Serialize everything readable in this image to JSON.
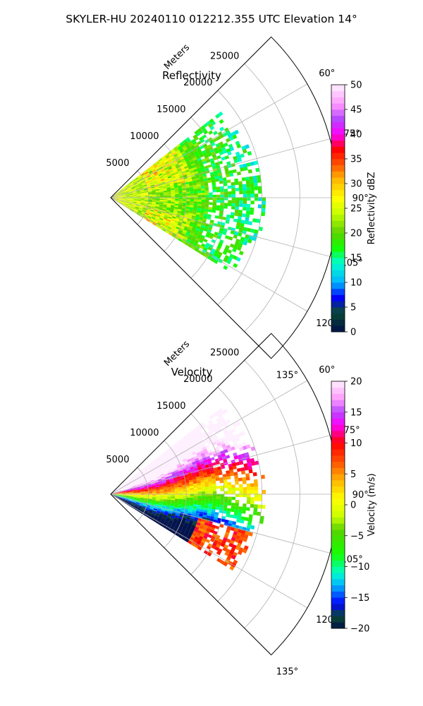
{
  "suptitle": "SKYLER-HU  20240110  012212.355 UTC Elevation 14°",
  "chart_data": [
    {
      "type": "heatmap",
      "subtype": "polar-sector (PPI)",
      "title": "Reflectivity",
      "radial_axis_label": "Meters",
      "radial_ticks": [
        5000,
        10000,
        15000,
        20000,
        25000
      ],
      "radial_tick_labels": [
        "5000",
        "10000",
        "15000",
        "20000",
        "25000"
      ],
      "rmax": 30000,
      "azimuth_range_deg": [
        45,
        135
      ],
      "azimuth_ticks": [
        60,
        75,
        90,
        105,
        120,
        135
      ],
      "azimuth_tick_labels": [
        "60°",
        "75°",
        "90°",
        "105°",
        "120°",
        "135°"
      ],
      "data_extent": {
        "azimuth_deg": [
          52,
          122
        ],
        "max_range_m": 20500
      },
      "grid": true,
      "colorbar": {
        "label": "Reflectivity dBZ",
        "vmin": 0,
        "vmax": 50,
        "ticks": [
          0,
          5,
          10,
          15,
          20,
          25,
          30,
          35,
          40,
          45,
          50
        ],
        "tick_labels": [
          "0",
          "5",
          "10",
          "15",
          "20",
          "25",
          "30",
          "35",
          "40",
          "45",
          "50"
        ]
      },
      "stops": [
        [
          0,
          "#00104a"
        ],
        [
          4,
          "#0a4a32"
        ],
        [
          7,
          "#0000ff"
        ],
        [
          10,
          "#00b4ff"
        ],
        [
          14,
          "#00ffcc"
        ],
        [
          17,
          "#14ff00"
        ],
        [
          20,
          "#5ad200"
        ],
        [
          24,
          "#c8ff00"
        ],
        [
          27,
          "#ffff00"
        ],
        [
          31,
          "#ffb400"
        ],
        [
          34,
          "#ff5000"
        ],
        [
          37,
          "#ff0000"
        ],
        [
          40,
          "#ff00ff"
        ],
        [
          43,
          "#b446ff"
        ],
        [
          46,
          "#ff96ff"
        ],
        [
          50,
          "#fff0ff"
        ]
      ],
      "field": "reflectivity"
    },
    {
      "type": "heatmap",
      "subtype": "polar-sector (PPI)",
      "title": "Velocity",
      "radial_axis_label": "Meters",
      "radial_ticks": [
        5000,
        10000,
        15000,
        20000,
        25000
      ],
      "radial_tick_labels": [
        "5000",
        "10000",
        "15000",
        "20000",
        "25000"
      ],
      "rmax": 30000,
      "azimuth_range_deg": [
        45,
        135
      ],
      "azimuth_ticks": [
        60,
        75,
        90,
        105,
        120,
        135
      ],
      "azimuth_tick_labels": [
        "60°",
        "75°",
        "90°",
        "105°",
        "120°",
        "135°"
      ],
      "data_extent": {
        "azimuth_deg": [
          52,
          122
        ],
        "max_range_m": 20500
      },
      "grid": true,
      "colorbar": {
        "label": "Velocity (m/s)",
        "vmin": -20,
        "vmax": 20,
        "ticks": [
          -20,
          -15,
          -10,
          -5,
          0,
          5,
          10,
          15,
          20
        ],
        "tick_labels": [
          "−20",
          "−15",
          "−10",
          "−5",
          "0",
          "5",
          "10",
          "15",
          "20"
        ]
      },
      "stops": [
        [
          -20,
          "#00104a"
        ],
        [
          -18,
          "#0a4a32"
        ],
        [
          -16,
          "#0000ff"
        ],
        [
          -13,
          "#00b4ff"
        ],
        [
          -11,
          "#00ffcc"
        ],
        [
          -8,
          "#14ff00"
        ],
        [
          -4,
          "#5ad200"
        ],
        [
          -2,
          "#c8ff00"
        ],
        [
          1,
          "#ffff00"
        ],
        [
          4,
          "#ffb400"
        ],
        [
          7,
          "#ff5000"
        ],
        [
          10,
          "#ff0000"
        ],
        [
          13,
          "#ff00ff"
        ],
        [
          15,
          "#b446ff"
        ],
        [
          17,
          "#ff96ff"
        ],
        [
          20,
          "#fff0ff"
        ]
      ],
      "field": "velocity"
    }
  ]
}
